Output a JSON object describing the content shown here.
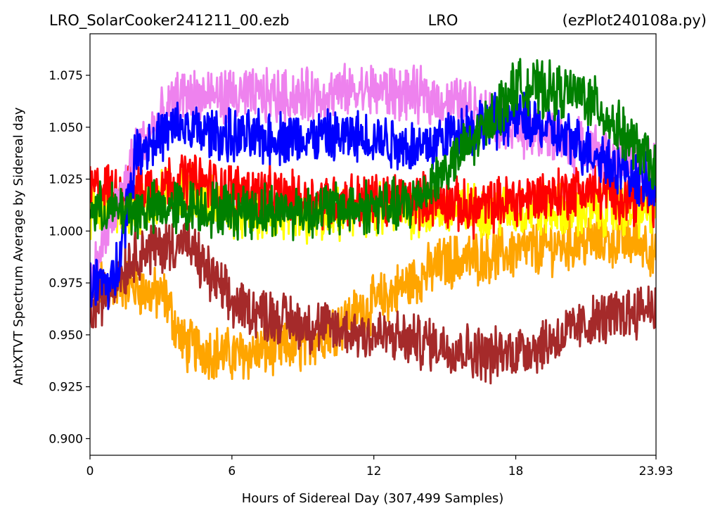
{
  "title": {
    "left": "LRO_SolarCooker241211_00.ezb",
    "center": "LRO",
    "right": "(ezPlot240108a.py)"
  },
  "chart_data": {
    "type": "line",
    "xlabel": "Hours of Sidereal Day  (307,499 Samples)",
    "ylabel": "AntXTVT Spectrum Average by Sidereal day",
    "xlim": [
      0,
      23.93
    ],
    "ylim": [
      0.892,
      1.095
    ],
    "x_ticks": [
      0,
      6,
      12,
      18,
      23.93
    ],
    "x_tick_labels": [
      "0",
      "6",
      "12",
      "18",
      "23.93"
    ],
    "y_ticks": [
      0.9,
      0.925,
      0.95,
      0.975,
      1.0,
      1.025,
      1.05,
      1.075
    ],
    "y_tick_labels": [
      "0.900",
      "0.925",
      "0.950",
      "0.975",
      "1.000",
      "1.025",
      "1.050",
      "1.075"
    ],
    "grid": false,
    "legend": "none",
    "series": [
      {
        "color": "#ffa500",
        "x": [
          0,
          1.5,
          2.5,
          3.2,
          3.6,
          4,
          6,
          9,
          12,
          15,
          18,
          21,
          23.5,
          23.93
        ],
        "y": [
          0.975,
          0.975,
          0.97,
          0.968,
          0.955,
          0.945,
          0.94,
          0.945,
          0.965,
          0.985,
          0.99,
          0.995,
          0.995,
          0.985
        ]
      },
      {
        "color": "#ffff00",
        "x": [
          0,
          2,
          4,
          6,
          9,
          12,
          13.4,
          15,
          18,
          21,
          23.93
        ],
        "y": [
          1.01,
          1.012,
          1.02,
          1.01,
          1.005,
          1.01,
          1.01,
          1.01,
          1.01,
          1.01,
          1.01
        ]
      },
      {
        "color": "#ff0000",
        "x": [
          0,
          2,
          4,
          6,
          9,
          12,
          15,
          16,
          18,
          21,
          23.93
        ],
        "y": [
          1.02,
          1.02,
          1.025,
          1.02,
          1.015,
          1.015,
          1.015,
          1.01,
          1.015,
          1.02,
          1.015
        ]
      },
      {
        "color": "#a52a2a",
        "x": [
          0,
          2,
          4,
          6,
          9,
          12,
          15,
          17,
          19,
          21,
          23.93
        ],
        "y": [
          0.96,
          0.99,
          0.995,
          0.965,
          0.955,
          0.95,
          0.945,
          0.94,
          0.945,
          0.955,
          0.965
        ]
      },
      {
        "color": "#ee82ee",
        "x": [
          0,
          2,
          3.8,
          6,
          9,
          12,
          14,
          16,
          18,
          21,
          23.93
        ],
        "y": [
          0.975,
          1.04,
          1.065,
          1.065,
          1.065,
          1.068,
          1.065,
          1.06,
          1.05,
          1.04,
          1.03
        ]
      },
      {
        "color": "#0000ff",
        "x": [
          0,
          1,
          2,
          3.8,
          6,
          9,
          12,
          14,
          16,
          18,
          21,
          23.93
        ],
        "y": [
          0.975,
          0.975,
          1.04,
          1.05,
          1.045,
          1.045,
          1.045,
          1.04,
          1.05,
          1.055,
          1.04,
          1.02
        ]
      },
      {
        "color": "#008000",
        "x": [
          0,
          2,
          4,
          6,
          9,
          12,
          13.4,
          16,
          18,
          21,
          23.93
        ],
        "y": [
          1.01,
          1.01,
          1.012,
          1.01,
          1.01,
          1.012,
          1.012,
          1.04,
          1.07,
          1.065,
          1.03
        ]
      }
    ]
  }
}
